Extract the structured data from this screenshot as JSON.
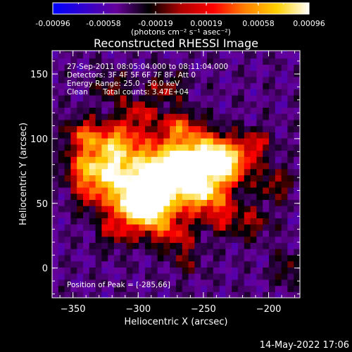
{
  "colorbar": {
    "tick_labels": [
      "-0.00096",
      "-0.00058",
      "-0.00019",
      "0.00019",
      "0.00058",
      "0.00096"
    ],
    "tick_values": [
      -0.00096,
      -0.00058,
      -0.00019,
      0.00019,
      0.00058,
      0.00096
    ],
    "range": [
      -0.00096,
      0.00096
    ],
    "units_label": "(photons cm⁻² s⁻¹ asec⁻²)",
    "colors": [
      "#0000ff",
      "#3300cc",
      "#660099",
      "#000000",
      "#b00000",
      "#ff0000",
      "#ff8000",
      "#ffd000",
      "#ffffff"
    ]
  },
  "chart_data": {
    "type": "heatmap",
    "title": "Reconstructed RHESSI Image",
    "xlabel": "Heliocentric X (arcsec)",
    "ylabel": "Heliocentric Y (arcsec)",
    "xlim": [
      -366,
      -176
    ],
    "ylim": [
      -23,
      168
    ],
    "x_ticks": [
      -350,
      -300,
      -250,
      -200
    ],
    "y_ticks": [
      0,
      50,
      100,
      150
    ],
    "x_tick_labels": [
      "−350",
      "−300",
      "−250",
      "−200"
    ],
    "y_tick_labels": [
      "0",
      "50",
      "100",
      "150"
    ],
    "peak": [
      -285,
      66
    ],
    "annotations": {
      "time_range": "27-Sep-2011 08:05:04.000 to 08:11:04.000",
      "detectors": "Detectors: 3F 4F 5F 6F 7F 8F, Att 0",
      "energy_range": "Energy Range: 25.0 - 50.0 keV",
      "method": "Clean",
      "total_counts": "Total counts: 3.47E+04",
      "peak_position": "Position of Peak = [-285,66]"
    }
  },
  "footer": {
    "timestamp": "14-May-2022 17:06"
  }
}
